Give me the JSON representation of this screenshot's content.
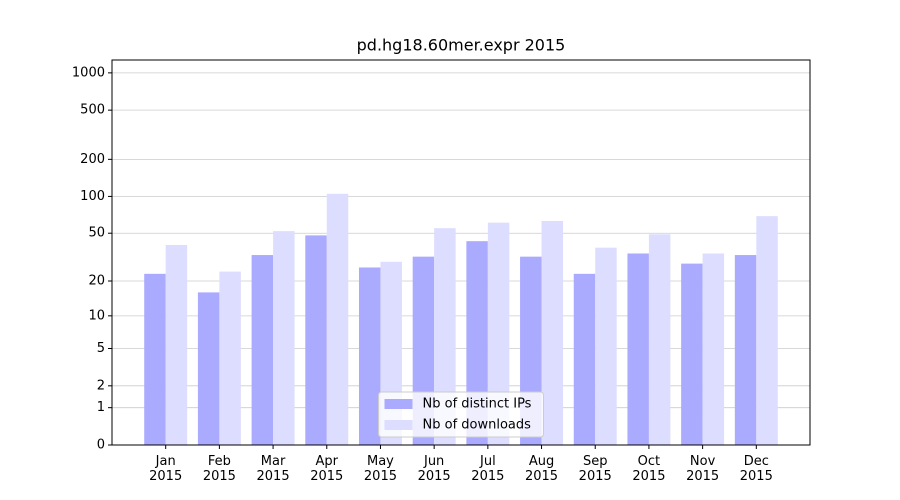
{
  "chart_data": {
    "type": "bar",
    "title": "pd.hg18.60mer.expr 2015",
    "categories": [
      "Jan\n2015",
      "Feb\n2015",
      "Mar\n2015",
      "Apr\n2015",
      "May\n2015",
      "Jun\n2015",
      "Jul\n2015",
      "Aug\n2015",
      "Sep\n2015",
      "Oct\n2015",
      "Nov\n2015",
      "Dec\n2015"
    ],
    "series": [
      {
        "name": "Nb of distinct IPs",
        "color": "#aaaaff",
        "values": [
          23,
          16,
          33,
          48,
          26,
          32,
          43,
          32,
          23,
          34,
          28,
          33
        ]
      },
      {
        "name": "Nb of downloads",
        "color": "#ddddff",
        "values": [
          40,
          24,
          52,
          105,
          29,
          55,
          61,
          63,
          38,
          49,
          34,
          69
        ]
      }
    ],
    "yscale": "log1p",
    "ylim": [
      0,
      1270
    ],
    "yticks": [
      0,
      1,
      2,
      5,
      10,
      20,
      50,
      100,
      200,
      500,
      1000
    ],
    "grid": true,
    "legend": "lower center"
  }
}
